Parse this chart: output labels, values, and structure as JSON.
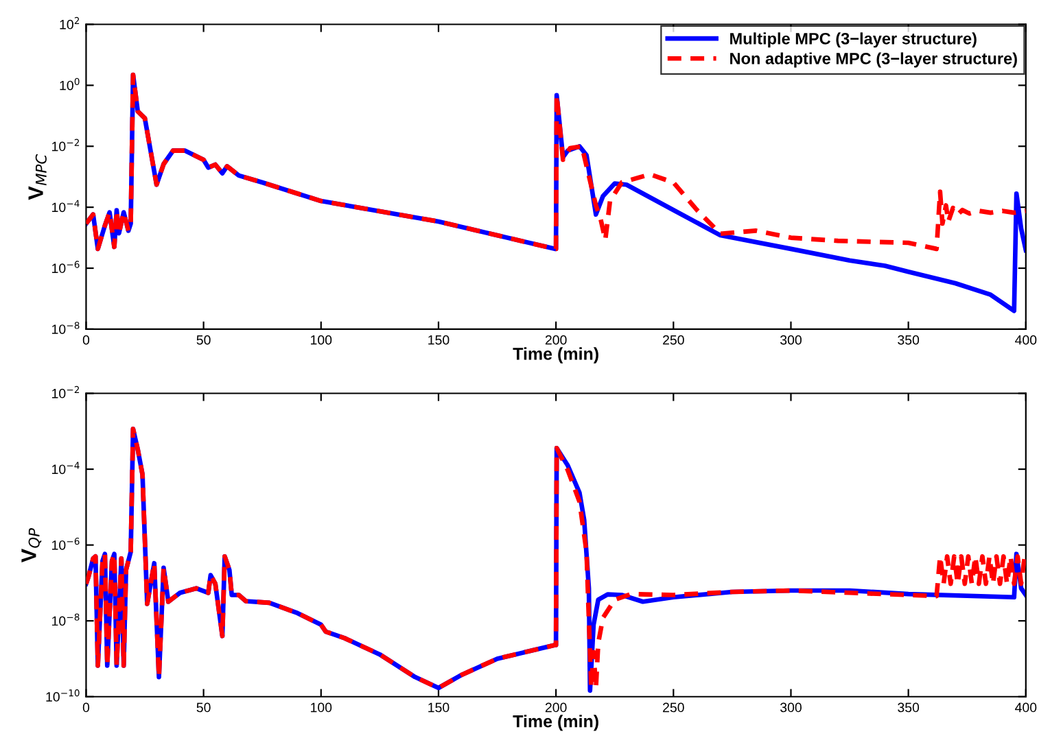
{
  "chart_data": [
    {
      "type": "line",
      "xlabel": "Time (min)",
      "ylabel": "V$_{MPC}$",
      "log": "y",
      "xlim": [
        0,
        400
      ],
      "ylim": [
        1e-08,
        100
      ],
      "xticks": [
        0,
        50,
        100,
        150,
        200,
        250,
        300,
        350,
        400
      ],
      "yticks": [
        {
          "value": 1e-08,
          "label": "10$^{−8}$"
        },
        {
          "value": 1e-06,
          "label": "10$^{−6}$"
        },
        {
          "value": 0.0001,
          "label": "10$^{−4}$"
        },
        {
          "value": 0.01,
          "label": "10$^{−2}$"
        },
        {
          "value": 1,
          "label": "10$^{0}$"
        },
        {
          "value": 100,
          "label": "10$^{2}$"
        }
      ],
      "grid": false,
      "legend": "top right",
      "marker": "none",
      "series": [
        {
          "name": "Multiple MPC (3−layer structure)",
          "color": "#0000ff",
          "line_style": "solid",
          "x": [
            0,
            3,
            5,
            8,
            10,
            12,
            13,
            14,
            16,
            18,
            19,
            20,
            22,
            25,
            30,
            33,
            37,
            42,
            50,
            52,
            55,
            58,
            60,
            65,
            75,
            100,
            150,
            199.5,
            200,
            200.3,
            203,
            205,
            210,
            213,
            217,
            220,
            225,
            230,
            250,
            270,
            300,
            325,
            340,
            350,
            370,
            385,
            395,
            396,
            398,
            400
          ],
          "values": [
            2.9e-05,
            5.8e-05,
            4.3e-06,
            2.5e-05,
            6.8e-05,
            5e-06,
            7.9e-05,
            1.4e-05,
            6.8e-05,
            1.7e-05,
            2.9e-05,
            2.2,
            0.14,
            0.083,
            0.00055,
            0.0026,
            0.0072,
            0.0072,
            0.0036,
            0.002,
            0.0025,
            0.0013,
            0.0022,
            0.0011,
            0.00065,
            0.00016,
            3.4e-05,
            4.3e-06,
            4.3e-06,
            0.47,
            0.0044,
            0.0072,
            0.01,
            0.0051,
            5.8e-05,
            0.00023,
            0.0006,
            0.00055,
            8.1e-05,
            1.2e-05,
            4.3e-06,
            1.8e-06,
            1.2e-06,
            7.6e-07,
            3.2e-07,
            1.35e-07,
            4e-08,
            0.00028,
            2e-05,
            3.9e-06
          ]
        },
        {
          "name": "Non adaptive MPC (3−layer structure)",
          "color": "#ff0000",
          "line_style": "dashed",
          "x": [
            0,
            3,
            5,
            8,
            10,
            12,
            13,
            14,
            16,
            18,
            19,
            20,
            22,
            25,
            30,
            33,
            37,
            42,
            50,
            52,
            55,
            58,
            60,
            65,
            75,
            100,
            150,
            199.5,
            200,
            200.3,
            203,
            206,
            211,
            217,
            219,
            221,
            223,
            228,
            240,
            250,
            260,
            270,
            285,
            300,
            320,
            350,
            362,
            363.5,
            364.5,
            366,
            367,
            369,
            371,
            373,
            376,
            380,
            385,
            390,
            395,
            400
          ],
          "values": [
            2.9e-05,
            5.8e-05,
            4.3e-06,
            2.5e-05,
            6.8e-05,
            5e-06,
            7.9e-05,
            1.4e-05,
            6.8e-05,
            1.7e-05,
            2.9e-05,
            2.2,
            0.14,
            0.083,
            0.00055,
            0.0026,
            0.0072,
            0.0072,
            0.0036,
            0.002,
            0.0025,
            0.0013,
            0.0022,
            0.0011,
            0.00065,
            0.00016,
            3.4e-05,
            4.3e-06,
            4.3e-06,
            0.47,
            0.0036,
            0.0087,
            0.01,
            0.000115,
            4.1e-05,
            8.5e-06,
            0.00016,
            0.00065,
            0.0012,
            0.00065,
            8.1e-05,
            1.35e-05,
            1.7e-05,
            1e-05,
            7.9e-06,
            6.8e-06,
            4.3e-06,
            0.00032,
            2.9e-05,
            0.000115,
            3.4e-05,
            9.5e-05,
            5.8e-05,
            8.1e-05,
            6.2e-05,
            7.6e-05,
            6.6e-05,
            7.6e-05,
            6.6e-05,
            7.6e-05
          ]
        }
      ]
    },
    {
      "type": "line",
      "xlabel": "Time (min)",
      "ylabel": "V$_{QP}$",
      "log": "y",
      "xlim": [
        0,
        400
      ],
      "ylim": [
        1e-10,
        0.01
      ],
      "xticks": [
        0,
        50,
        100,
        150,
        200,
        250,
        300,
        350,
        400
      ],
      "yticks": [
        {
          "value": 1e-10,
          "label": "10$^{−10}$"
        },
        {
          "value": 1e-08,
          "label": "10$^{−8}$"
        },
        {
          "value": 1e-06,
          "label": "10$^{−6}$"
        },
        {
          "value": 0.0001,
          "label": "10$^{−4}$"
        },
        {
          "value": 0.01,
          "label": "10$^{−2}$"
        }
      ],
      "grid": false,
      "legend": false,
      "marker": "none",
      "series": [
        {
          "color": "#0000ff",
          "line_style": "solid",
          "x": [
            0,
            1,
            3,
            4,
            5,
            7,
            8,
            9,
            11,
            12,
            13,
            15,
            16,
            17,
            19,
            20,
            22,
            24,
            26,
            29,
            31,
            33,
            35,
            40,
            47,
            52,
            53,
            55,
            58,
            59,
            61,
            62,
            65,
            68,
            78,
            90,
            100,
            102,
            110,
            125,
            140,
            150,
            160,
            175,
            199.5,
            200,
            200.3,
            205,
            210,
            212,
            214,
            214.5,
            216,
            218,
            222,
            228,
            237,
            250,
            275,
            300,
            325,
            350,
            395,
            396,
            398,
            400
          ],
          "values": [
            9.5e-08,
            1.45e-07,
            4.4e-07,
            5e-07,
            6.6e-10,
            3.8e-07,
            5.8e-07,
            6.6e-10,
            3.8e-07,
            5.8e-07,
            6.6e-10,
            4.4e-07,
            6.6e-10,
            2.2e-07,
            6.6e-07,
            0.00115,
            0.00033,
            7.2e-05,
            2.8e-08,
            3.3e-07,
            3.3e-10,
            2.5e-07,
            3.2e-08,
            5.5e-08,
            7.2e-08,
            5.5e-08,
            1.6e-07,
            9.5e-08,
            4e-09,
            5e-07,
            2.2e-07,
            4.8e-08,
            4.8e-08,
            3.3e-08,
            3e-08,
            1.6e-08,
            7.9e-09,
            5.2e-09,
            3.5e-09,
            1.3e-09,
            3.3e-10,
            1.7e-10,
            3.8e-10,
            1e-09,
            2.3e-09,
            2.3e-09,
            0.00036,
            0.000126,
            2.4e-05,
            4.6e-06,
            7.2e-08,
            1.45e-10,
            7.9e-09,
            3.6e-08,
            5e-08,
            4.8e-08,
            3.2e-08,
            4.2e-08,
            5.8e-08,
            6.3e-08,
            6.3e-08,
            5.1e-08,
            4.2e-08,
            5.8e-07,
            7.2e-08,
            4.8e-08
          ]
        },
        {
          "color": "#ff0000",
          "line_style": "dashed",
          "x": [
            0,
            1,
            3,
            4,
            5,
            7,
            8,
            9,
            11,
            12,
            13,
            15,
            16,
            17,
            19,
            20,
            22,
            24,
            26,
            29,
            31,
            33,
            35,
            40,
            47,
            52,
            53,
            55,
            58,
            59,
            61,
            62,
            65,
            68,
            78,
            90,
            100,
            102,
            110,
            125,
            140,
            150,
            160,
            175,
            199.5,
            200,
            200.3,
            205,
            210,
            213,
            215,
            216,
            217,
            218,
            220,
            225,
            232,
            250,
            275,
            300,
            325,
            362,
            363.5,
            365,
            366.5,
            368,
            369.5,
            371,
            372.5,
            374,
            375.5,
            377,
            378.5,
            380,
            381.5,
            383,
            384.5,
            386,
            387.5,
            389,
            390.5,
            392,
            393.5,
            395,
            396.5,
            398,
            399.5
          ],
          "values": [
            9.5e-08,
            1.45e-07,
            4.4e-07,
            5e-07,
            6.6e-10,
            3.8e-07,
            5.8e-07,
            6.6e-10,
            3.8e-07,
            5.8e-07,
            6.6e-10,
            4.4e-07,
            6.6e-10,
            2.2e-07,
            6.6e-07,
            0.00115,
            0.00033,
            7.2e-05,
            2.8e-08,
            3.3e-07,
            3.3e-10,
            2.5e-07,
            3.2e-08,
            5.5e-08,
            7.2e-08,
            5.5e-08,
            1.6e-07,
            9.5e-08,
            4e-09,
            5e-07,
            2.2e-07,
            4.8e-08,
            4.8e-08,
            3.3e-08,
            3e-08,
            1.6e-08,
            7.9e-09,
            5.2e-09,
            3.5e-09,
            1.3e-09,
            3.3e-10,
            1.7e-10,
            3.8e-10,
            1e-09,
            2.3e-09,
            2.3e-09,
            0.00036,
            9.5e-05,
            1.4e-05,
            6.6e-07,
            1.7e-10,
            1.5e-09,
            1.7e-10,
            2.6e-09,
            1.2e-08,
            3.6e-08,
            5.1e-08,
            4.8e-08,
            5.8e-08,
            6.3e-08,
            5.5e-08,
            4.5e-08,
            5e-07,
            9.5e-08,
            5e-07,
            9.5e-08,
            5e-07,
            9.5e-08,
            5e-07,
            9.5e-08,
            5e-07,
            9.5e-08,
            5e-07,
            9.5e-08,
            5e-07,
            9.5e-08,
            5e-07,
            9.5e-08,
            5e-07,
            9.5e-08,
            5e-07,
            9.5e-08,
            5e-07,
            9.5e-08,
            5e-07,
            9.5e-08,
            5e-07
          ]
        }
      ]
    }
  ]
}
